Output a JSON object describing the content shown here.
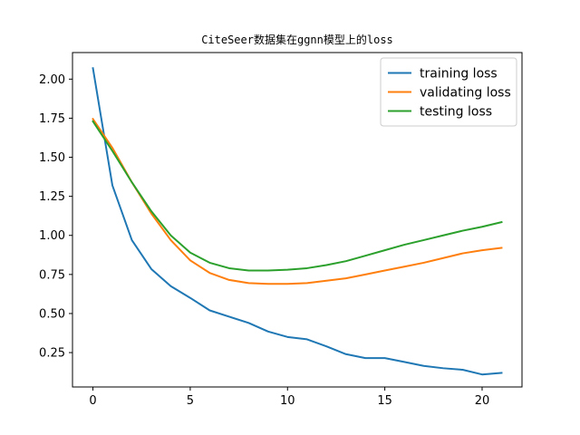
{
  "chart_data": {
    "type": "line",
    "title": "CiteSeer数据集在ggnn模型上的loss",
    "xlabel": "",
    "ylabel": "",
    "xlim": [
      -1.05,
      22.05
    ],
    "ylim": [
      0.03,
      2.17
    ],
    "x_ticks": [
      0,
      5,
      10,
      15,
      20
    ],
    "y_ticks": [
      0.25,
      0.5,
      0.75,
      1.0,
      1.25,
      1.5,
      1.75,
      2.0
    ],
    "y_tick_labels": [
      "0.25",
      "0.50",
      "0.75",
      "1.00",
      "1.25",
      "1.50",
      "1.75",
      "2.00"
    ],
    "x_tick_labels": [
      "0",
      "5",
      "10",
      "15",
      "20"
    ],
    "grid": false,
    "legend_position": "top-right",
    "x": [
      0,
      1,
      2,
      3,
      4,
      5,
      6,
      7,
      8,
      9,
      10,
      11,
      12,
      13,
      14,
      15,
      16,
      17,
      18,
      19,
      20,
      21
    ],
    "series": [
      {
        "name": "training loss",
        "color": "#1f77b4",
        "values": [
          2.07,
          1.32,
          0.97,
          0.785,
          0.675,
          0.6,
          0.52,
          0.48,
          0.44,
          0.385,
          0.35,
          0.335,
          0.29,
          0.24,
          0.215,
          0.215,
          0.19,
          0.165,
          0.15,
          0.14,
          0.11,
          0.12
        ]
      },
      {
        "name": "validating loss",
        "color": "#ff7f0e",
        "values": [
          1.745,
          1.56,
          1.34,
          1.14,
          0.97,
          0.84,
          0.76,
          0.715,
          0.695,
          0.69,
          0.69,
          0.695,
          0.71,
          0.725,
          0.75,
          0.775,
          0.8,
          0.825,
          0.855,
          0.885,
          0.905,
          0.92
        ]
      },
      {
        "name": "testing loss",
        "color": "#2ca02c",
        "values": [
          1.73,
          1.54,
          1.34,
          1.155,
          1.0,
          0.89,
          0.825,
          0.79,
          0.775,
          0.775,
          0.78,
          0.79,
          0.81,
          0.835,
          0.87,
          0.905,
          0.94,
          0.97,
          1.0,
          1.03,
          1.055,
          1.085
        ]
      }
    ]
  }
}
